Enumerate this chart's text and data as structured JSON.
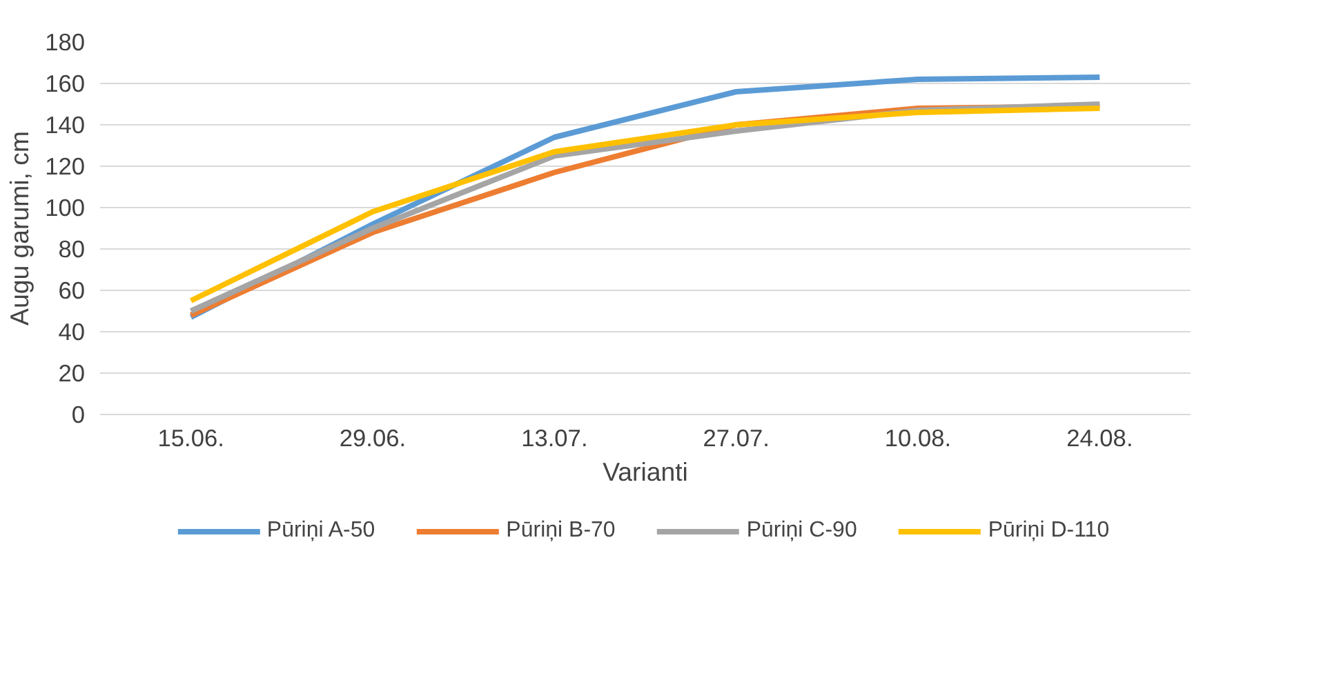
{
  "chart_data": {
    "type": "line",
    "xlabel": "Varianti",
    "ylabel": "Augu garumi, cm",
    "categories": [
      "15.06.",
      "29.06.",
      "13.07.",
      "27.07.",
      "10.08.",
      "24.08."
    ],
    "series": [
      {
        "name": "Pūriņi A-50",
        "color": "#5b9bd5",
        "values": [
          47,
          92,
          134,
          156,
          162,
          163
        ]
      },
      {
        "name": "Pūriņi B-70",
        "color": "#ed7d31",
        "values": [
          48,
          88,
          117,
          140,
          148,
          149
        ]
      },
      {
        "name": "Pūriņi C-90",
        "color": "#a5a5a5",
        "values": [
          50,
          90,
          125,
          137,
          147,
          150
        ]
      },
      {
        "name": "Pūriņi D-110",
        "color": "#ffc000",
        "values": [
          55,
          98,
          127,
          140,
          146,
          148
        ]
      }
    ],
    "ylim": [
      0,
      180
    ],
    "yticks": [
      0,
      20,
      40,
      60,
      80,
      100,
      120,
      140,
      160,
      180
    ],
    "grid": "y",
    "legend": "bottom",
    "marker": "none",
    "line_style": "solid"
  }
}
